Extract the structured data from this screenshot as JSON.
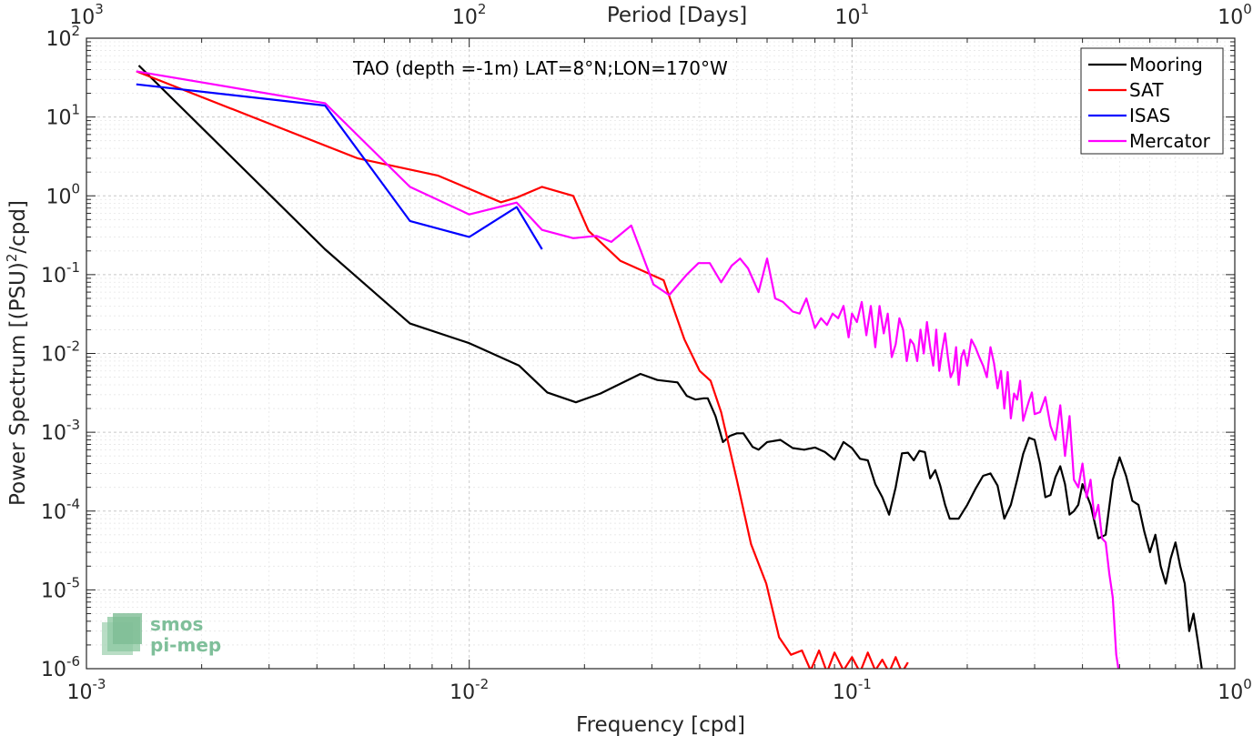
{
  "chart_data": {
    "type": "line",
    "title": "TAO (depth =-1m) LAT=8°N;LON=170°W",
    "xlabel": "Frequency [cpd]",
    "ylabel": "Power Spectrum [(PSU)²/cpd]",
    "ylabel_parts": {
      "pre": "Power Spectrum [(PSU)",
      "sup": "2",
      "post": "/cpd]"
    },
    "top_xlabel": "Period [Days]",
    "xscale": "log",
    "yscale": "log",
    "xlim": [
      0.001,
      1
    ],
    "ylim": [
      1e-06,
      100
    ],
    "grid": true,
    "legend_position": "top-right",
    "x_ticks": [
      {
        "b": "10",
        "e": "-3"
      },
      {
        "b": "10",
        "e": "-2"
      },
      {
        "b": "10",
        "e": "-1"
      },
      {
        "b": "10",
        "e": "0"
      }
    ],
    "y_ticks": [
      {
        "b": "10",
        "e": "-6"
      },
      {
        "b": "10",
        "e": "-5"
      },
      {
        "b": "10",
        "e": "-4"
      },
      {
        "b": "10",
        "e": "-3"
      },
      {
        "b": "10",
        "e": "-2"
      },
      {
        "b": "10",
        "e": "-1"
      },
      {
        "b": "10",
        "e": "0"
      },
      {
        "b": "10",
        "e": "1"
      },
      {
        "b": "10",
        "e": "2"
      }
    ],
    "top_ticks": [
      {
        "b": "10",
        "e": "3"
      },
      {
        "b": "10",
        "e": "2"
      },
      {
        "b": "10",
        "e": "1"
      },
      {
        "b": "10",
        "e": "0"
      }
    ],
    "series": [
      {
        "name": "Mooring",
        "color": "#000000",
        "x": [
          0.00137,
          0.0042,
          0.007,
          0.01,
          0.0135,
          0.016,
          0.019,
          0.022,
          0.028,
          0.031,
          0.035,
          0.037,
          0.039,
          0.041,
          0.042,
          0.044,
          0.046,
          0.048,
          0.05,
          0.052,
          0.055,
          0.057,
          0.06,
          0.065,
          0.07,
          0.075,
          0.08,
          0.085,
          0.09,
          0.095,
          0.1,
          0.105,
          0.11,
          0.115,
          0.12,
          0.125,
          0.13,
          0.135,
          0.14,
          0.145,
          0.15,
          0.155,
          0.16,
          0.165,
          0.17,
          0.175,
          0.18,
          0.19,
          0.2,
          0.21,
          0.22,
          0.23,
          0.24,
          0.25,
          0.26,
          0.27,
          0.28,
          0.29,
          0.3,
          0.31,
          0.32,
          0.33,
          0.34,
          0.35,
          0.36,
          0.37,
          0.38,
          0.39,
          0.4,
          0.42,
          0.44,
          0.46,
          0.48,
          0.5,
          0.52,
          0.54,
          0.56,
          0.58,
          0.6,
          0.62,
          0.64,
          0.66,
          0.68,
          0.7,
          0.72,
          0.74,
          0.76,
          0.78,
          0.8,
          0.82
        ],
        "y": [
          45,
          0.21,
          0.024,
          0.0135,
          0.007,
          0.0032,
          0.0024,
          0.0031,
          0.0055,
          0.0046,
          0.0043,
          0.0029,
          0.0026,
          0.0027,
          0.0027,
          0.0016,
          0.00075,
          0.0009,
          0.00097,
          0.00097,
          0.00065,
          0.0006,
          0.00075,
          0.0008,
          0.00063,
          0.0006,
          0.00064,
          0.00056,
          0.00045,
          0.00075,
          0.00063,
          0.00046,
          0.00044,
          0.00022,
          0.00015,
          9e-05,
          0.0002,
          0.00054,
          0.00055,
          0.00044,
          0.00058,
          0.00056,
          0.00026,
          0.00033,
          0.00021,
          0.00012,
          8e-05,
          8e-05,
          0.00012,
          0.00019,
          0.00028,
          0.0003,
          0.00021,
          8e-05,
          0.00012,
          0.00025,
          0.00053,
          0.00085,
          0.0008,
          0.0004,
          0.00015,
          0.00016,
          0.00027,
          0.00037,
          0.00022,
          9e-05,
          0.0001,
          0.00012,
          0.00022,
          0.00012,
          4.5e-05,
          5e-05,
          0.00025,
          0.00048,
          0.00028,
          0.000135,
          0.00012,
          5.5e-05,
          3e-05,
          5e-05,
          2e-05,
          1.2e-05,
          2.5e-05,
          4e-05,
          2e-05,
          1.2e-05,
          3e-06,
          5e-06,
          2.3e-06,
          1e-06
        ]
      },
      {
        "name": "SAT",
        "color": "#ff0000",
        "x": [
          0.00135,
          0.0051,
          0.0083,
          0.0121,
          0.0133,
          0.0155,
          0.0187,
          0.0205,
          0.0248,
          0.0322,
          0.0365,
          0.04,
          0.0427,
          0.0455,
          0.05,
          0.0545,
          0.0597,
          0.0645,
          0.0693,
          0.074,
          0.078,
          0.082,
          0.086,
          0.09,
          0.095,
          0.1,
          0.105,
          0.11,
          0.115,
          0.12,
          0.125,
          0.13,
          0.135,
          0.14
        ],
        "y": [
          38,
          3,
          1.8,
          0.83,
          0.95,
          1.3,
          1,
          0.36,
          0.15,
          0.085,
          0.015,
          0.006,
          0.0045,
          0.0018,
          0.00025,
          3.8e-05,
          1.2e-05,
          2.5e-06,
          1.5e-06,
          1.7e-06,
          9.5e-07,
          1.7e-06,
          9e-07,
          1.6e-06,
          9.5e-07,
          1.4e-06,
          9e-07,
          1.6e-06,
          9.5e-07,
          1.3e-06,
          9e-07,
          1.4e-06,
          9e-07,
          1.2e-06
        ]
      },
      {
        "name": "ISAS",
        "color": "#0000ff",
        "x": [
          0.00135,
          0.0042,
          0.007,
          0.01,
          0.0133,
          0.0155
        ],
        "y": [
          26,
          14,
          0.48,
          0.3,
          0.72,
          0.21
        ]
      },
      {
        "name": "Mercator",
        "color": "#ff00ff",
        "x": [
          0.00135,
          0.0042,
          0.007,
          0.01,
          0.0133,
          0.0155,
          0.0187,
          0.0215,
          0.0235,
          0.0265,
          0.0303,
          0.0333,
          0.037,
          0.0397,
          0.0425,
          0.0455,
          0.0485,
          0.051,
          0.0535,
          0.057,
          0.06,
          0.063,
          0.066,
          0.07,
          0.073,
          0.076,
          0.08,
          0.083,
          0.086,
          0.089,
          0.092,
          0.095,
          0.098,
          0.1,
          0.103,
          0.106,
          0.109,
          0.112,
          0.115,
          0.118,
          0.121,
          0.124,
          0.127,
          0.13,
          0.133,
          0.136,
          0.139,
          0.142,
          0.145,
          0.148,
          0.151,
          0.154,
          0.157,
          0.16,
          0.163,
          0.166,
          0.169,
          0.172,
          0.175,
          0.178,
          0.181,
          0.184,
          0.187,
          0.19,
          0.193,
          0.196,
          0.2,
          0.205,
          0.21,
          0.215,
          0.22,
          0.225,
          0.23,
          0.235,
          0.24,
          0.245,
          0.25,
          0.255,
          0.26,
          0.265,
          0.27,
          0.275,
          0.28,
          0.285,
          0.29,
          0.295,
          0.3,
          0.31,
          0.32,
          0.33,
          0.34,
          0.35,
          0.36,
          0.37,
          0.38,
          0.39,
          0.4,
          0.41,
          0.42,
          0.43,
          0.44,
          0.45,
          0.46,
          0.47,
          0.48,
          0.49,
          0.5
        ],
        "y": [
          38,
          15,
          1.3,
          0.58,
          0.82,
          0.37,
          0.29,
          0.31,
          0.26,
          0.42,
          0.075,
          0.055,
          0.1,
          0.14,
          0.14,
          0.08,
          0.13,
          0.16,
          0.12,
          0.06,
          0.16,
          0.05,
          0.045,
          0.034,
          0.032,
          0.05,
          0.021,
          0.028,
          0.023,
          0.032,
          0.028,
          0.04,
          0.016,
          0.032,
          0.025,
          0.045,
          0.017,
          0.04,
          0.012,
          0.04,
          0.018,
          0.032,
          0.009,
          0.013,
          0.028,
          0.02,
          0.008,
          0.015,
          0.013,
          0.008,
          0.02,
          0.01,
          0.025,
          0.012,
          0.007,
          0.02,
          0.006,
          0.011,
          0.018,
          0.009,
          0.005,
          0.006,
          0.012,
          0.004,
          0.009,
          0.011,
          0.007,
          0.015,
          0.012,
          0.009,
          0.007,
          0.005,
          0.012,
          0.0075,
          0.0036,
          0.006,
          0.002,
          0.0058,
          0.0015,
          0.0031,
          0.0026,
          0.0045,
          0.0014,
          0.0019,
          0.0025,
          0.0032,
          0.0017,
          0.0018,
          0.0028,
          0.0012,
          0.0008,
          0.0022,
          0.0005,
          0.0016,
          0.00025,
          0.0002,
          0.0004,
          0.00015,
          0.00025,
          8e-05,
          0.00012,
          4.5e-05,
          4e-05,
          1.6e-05,
          8e-06,
          1.5e-06,
          8e-07
        ]
      }
    ],
    "watermark": [
      "smos",
      "pi-mep"
    ]
  }
}
